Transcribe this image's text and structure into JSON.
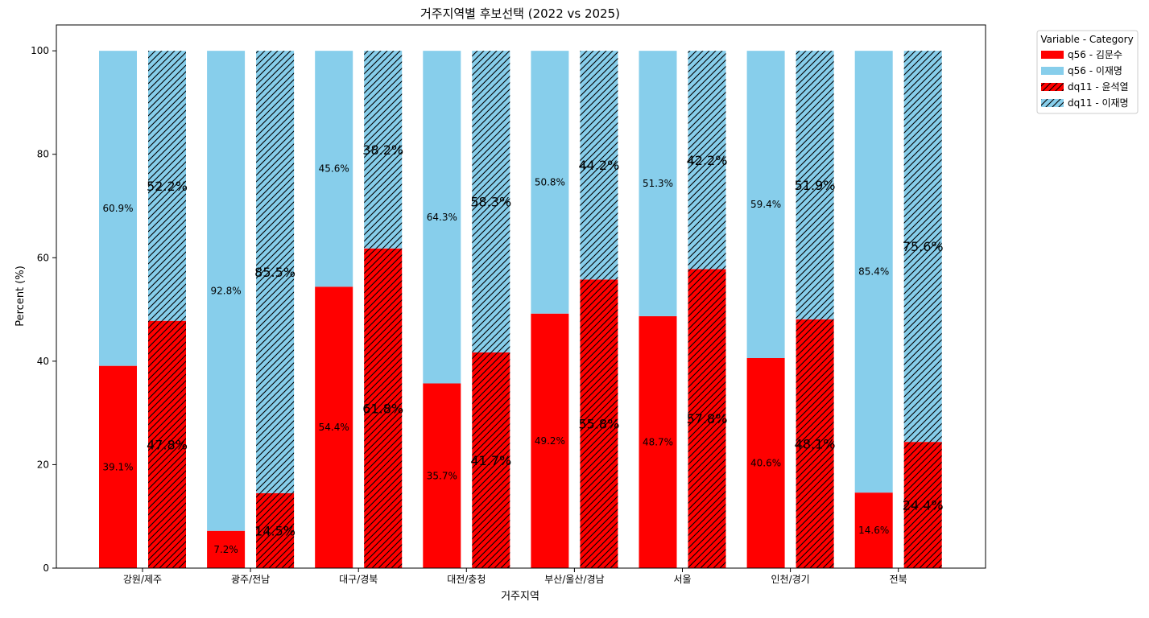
{
  "chart_data": {
    "type": "bar",
    "title": "거주지역별 후보선택 (2022 vs 2025)",
    "xlabel": "거주지역",
    "ylabel": "Percent (%)",
    "ylim": [
      0,
      105
    ],
    "yticks": [
      0,
      20,
      40,
      60,
      80,
      100
    ],
    "grid": false,
    "legend_position": "outside-top-right",
    "legend_title": "Variable - Category",
    "categories": [
      "강원/제주",
      "광주/전남",
      "대구/경북",
      "대전/충청",
      "부산/울산/경남",
      "서울",
      "인천/경기",
      "전북"
    ],
    "groups": [
      {
        "variable": "q56",
        "hatched": false,
        "series": [
          {
            "name": "q56 - 김문수",
            "color": "#ff0000",
            "values": [
              39.1,
              7.2,
              54.4,
              35.7,
              49.2,
              48.7,
              40.6,
              14.6
            ]
          },
          {
            "name": "q56 - 이재명",
            "color": "#87ceeb",
            "values": [
              60.9,
              92.8,
              45.6,
              64.3,
              50.8,
              51.3,
              59.4,
              85.4
            ]
          }
        ]
      },
      {
        "variable": "dq11",
        "hatched": true,
        "series": [
          {
            "name": "dq11 - 윤석열",
            "color": "#ff0000",
            "values": [
              47.8,
              14.5,
              61.8,
              41.7,
              55.8,
              57.8,
              48.1,
              24.4
            ]
          },
          {
            "name": "dq11 - 이재명",
            "color": "#87ceeb",
            "values": [
              52.2,
              85.5,
              38.2,
              58.3,
              44.2,
              42.2,
              51.9,
              75.6
            ]
          }
        ]
      }
    ]
  }
}
